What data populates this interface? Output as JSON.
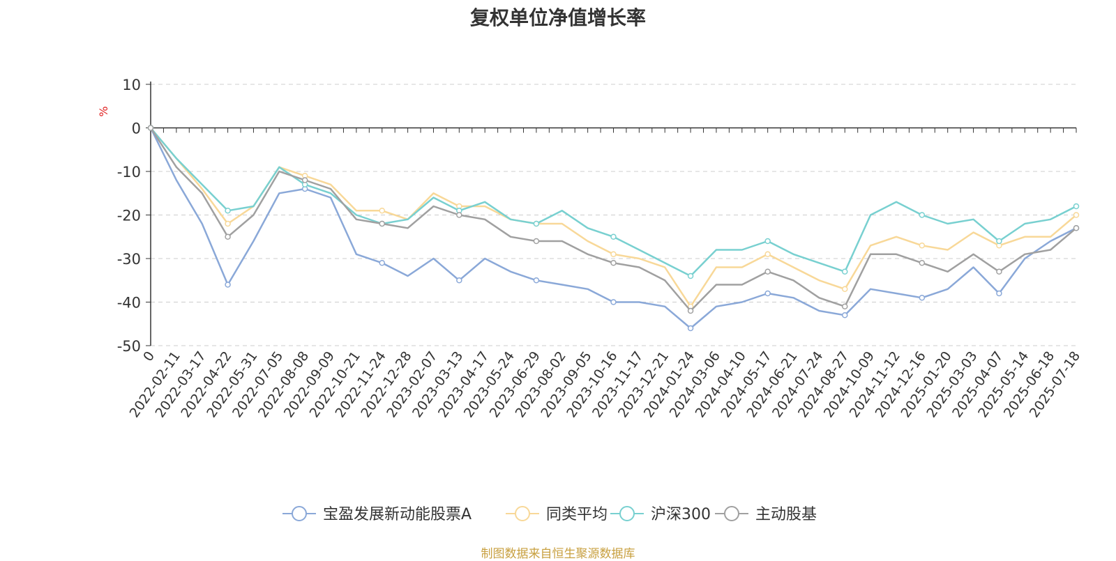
{
  "chart_data": {
    "type": "line",
    "title": "复权单位净值增长率",
    "ylabel": "%",
    "ylim": [
      -50,
      10
    ],
    "yticks": [
      10,
      0,
      -10,
      -20,
      -30,
      -40,
      -50
    ],
    "grid": true,
    "legend_position": "bottom",
    "x": [
      "0",
      "2022-02-11",
      "2022-03-17",
      "2022-04-22",
      "2022-05-31",
      "2022-07-05",
      "2022-08-08",
      "2022-09-09",
      "2022-10-21",
      "2022-11-24",
      "2022-12-28",
      "2023-02-07",
      "2023-03-13",
      "2023-04-17",
      "2023-05-24",
      "2023-06-29",
      "2023-08-02",
      "2023-09-05",
      "2023-10-16",
      "2023-11-17",
      "2023-12-21",
      "2024-01-24",
      "2024-03-06",
      "2024-04-10",
      "2024-05-17",
      "2024-06-21",
      "2024-07-24",
      "2024-08-27",
      "2024-10-09",
      "2024-11-12",
      "2024-12-16",
      "2025-01-20",
      "2025-03-03",
      "2025-04-07",
      "2025-05-14",
      "2025-06-18",
      "2025-07-18"
    ],
    "series": [
      {
        "name": "宝盈发展新动能股票A",
        "color": "#8aa8d8",
        "values": [
          0,
          -12,
          -22,
          -36,
          -26,
          -15,
          -14,
          -16,
          -29,
          -31,
          -34,
          -30,
          -35,
          -30,
          -33,
          -35,
          -36,
          -37,
          -40,
          -40,
          -41,
          -46,
          -41,
          -40,
          -38,
          -39,
          -42,
          -43,
          -37,
          -38,
          -39,
          -37,
          -32,
          -38,
          -30,
          -26,
          -23
        ]
      },
      {
        "name": "同类平均",
        "color": "#f8d898",
        "values": [
          0,
          -7,
          -14,
          -22,
          -18,
          -9,
          -11,
          -13,
          -19,
          -19,
          -21,
          -15,
          -18,
          -18,
          -21,
          -22,
          -22,
          -26,
          -29,
          -30,
          -32,
          -41,
          -32,
          -32,
          -29,
          -32,
          -35,
          -37,
          -27,
          -25,
          -27,
          -28,
          -24,
          -27,
          -25,
          -25,
          -20
        ]
      },
      {
        "name": "沪深300",
        "color": "#78d0d0",
        "values": [
          0,
          -7,
          -13,
          -19,
          -18,
          -9,
          -13,
          -15,
          -20,
          -22,
          -21,
          -16,
          -19,
          -17,
          -21,
          -22,
          -19,
          -23,
          -25,
          -28,
          -31,
          -34,
          -28,
          -28,
          -26,
          -29,
          -31,
          -33,
          -20,
          -17,
          -20,
          -22,
          -21,
          -26,
          -22,
          -21,
          -18
        ]
      },
      {
        "name": "主动股基",
        "color": "#a0a0a0",
        "values": [
          0,
          -9,
          -15,
          -25,
          -20,
          -10,
          -12,
          -14,
          -21,
          -22,
          -23,
          -18,
          -20,
          -21,
          -25,
          -26,
          -26,
          -29,
          -31,
          -32,
          -35,
          -42,
          -36,
          -36,
          -33,
          -35,
          -39,
          -41,
          -29,
          -29,
          -31,
          -33,
          -29,
          -33,
          -29,
          -28,
          -23
        ]
      }
    ],
    "legend": [
      "宝盈发展新动能股票A",
      "同类平均",
      "沪深300",
      "主动股基"
    ]
  },
  "source": "制图数据来自恒生聚源数据库"
}
